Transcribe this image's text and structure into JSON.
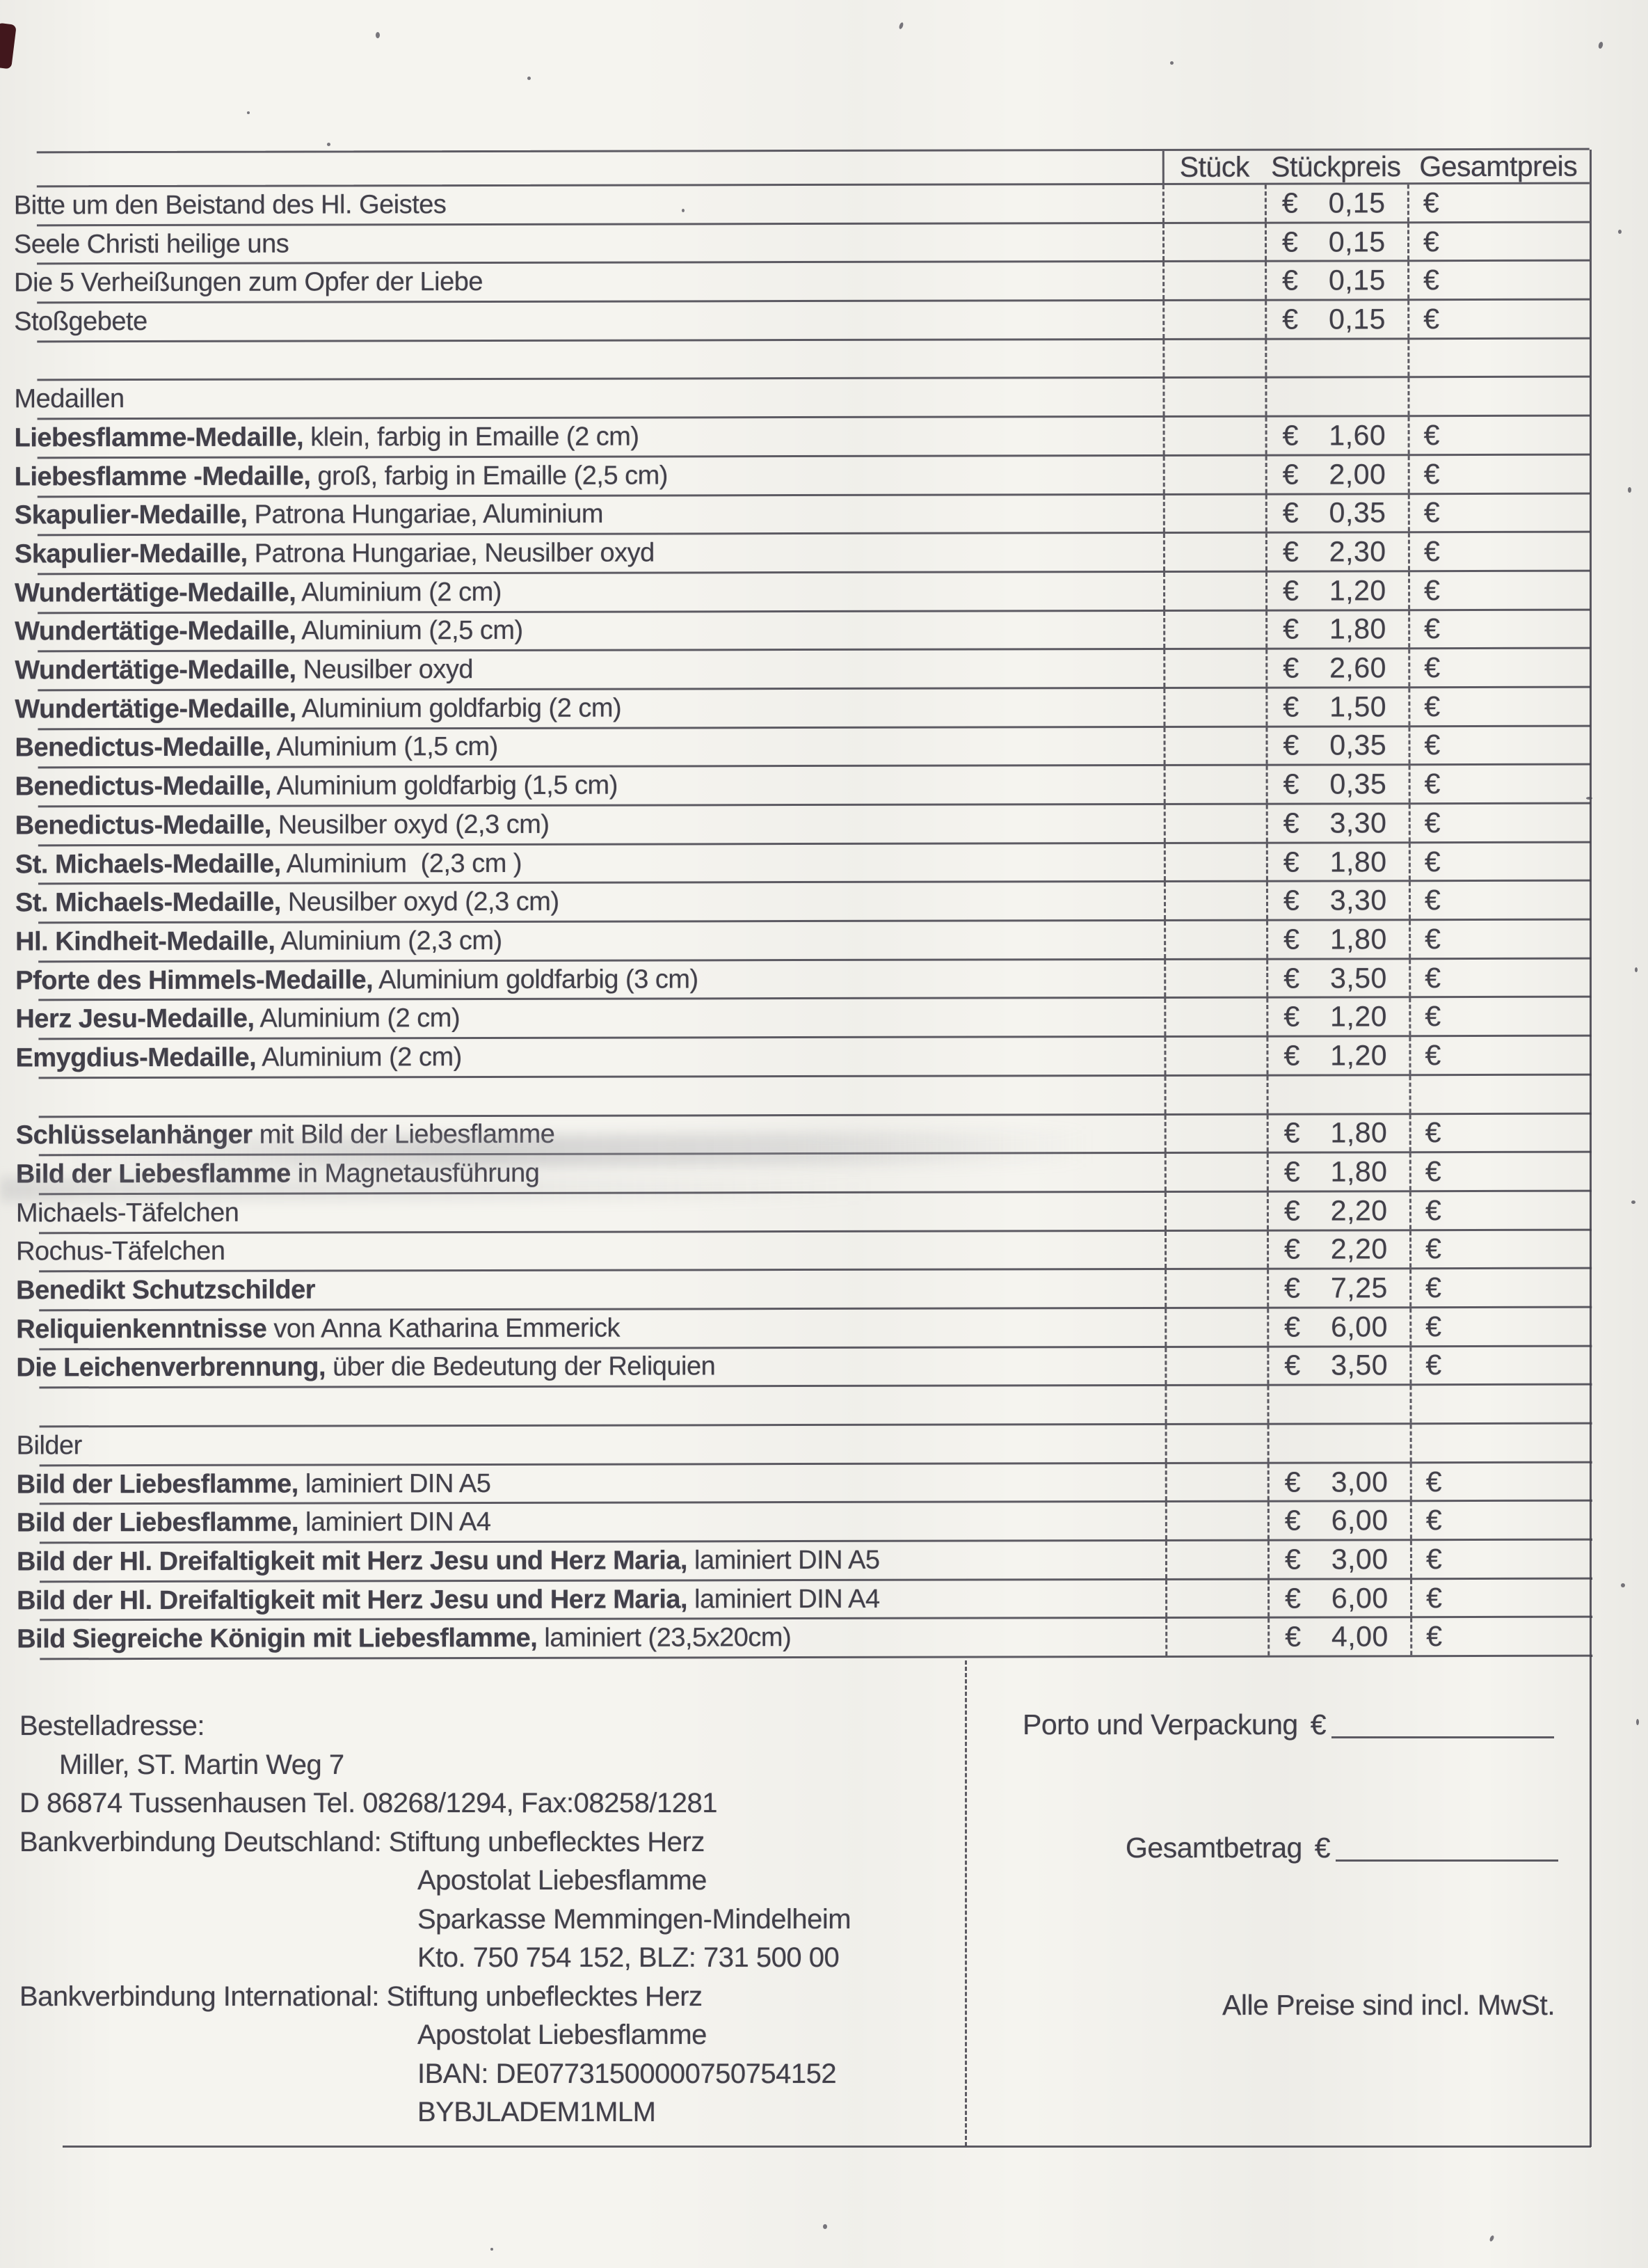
{
  "table": {
    "headers": {
      "stueck": "Stück",
      "stueckpreis": "Stückpreis",
      "gesamtpreis": "Gesamtpreis"
    },
    "currency": "€",
    "rows": [
      {
        "type": "item",
        "bold": "",
        "rest": "Bitte um den Beistand des Hl. Geistes",
        "price": "0,15"
      },
      {
        "type": "item",
        "bold": "",
        "rest": "Seele Christi heilige uns",
        "price": "0,15"
      },
      {
        "type": "item",
        "bold": "",
        "rest": "Die 5 Verheißungen zum Opfer der Liebe",
        "price": "0,15"
      },
      {
        "type": "item",
        "bold": "",
        "rest": "Stoßgebete",
        "price": "0,15"
      },
      {
        "type": "blank",
        "bold": "",
        "rest": "",
        "price": ""
      },
      {
        "type": "section",
        "bold": "",
        "rest": "Medaillen",
        "price": ""
      },
      {
        "type": "item",
        "bold": "Liebesflamme-Medaille,",
        "rest": " klein, farbig in Emaille (2 cm)",
        "price": "1,60"
      },
      {
        "type": "item",
        "bold": "Liebesflamme -Medaille,",
        "rest": " groß, farbig in Emaille (2,5 cm)",
        "price": "2,00"
      },
      {
        "type": "item",
        "bold": "Skapulier-Medaille,",
        "rest": " Patrona Hungariae, Aluminium",
        "price": "0,35"
      },
      {
        "type": "item",
        "bold": "Skapulier-Medaille,",
        "rest": " Patrona Hungariae, Neusilber oxyd",
        "price": "2,30"
      },
      {
        "type": "item",
        "bold": "Wundertätige-Medaille,",
        "rest": " Aluminium (2 cm)",
        "price": "1,20"
      },
      {
        "type": "item",
        "bold": "Wundertätige-Medaille,",
        "rest": " Aluminium (2,5 cm)",
        "price": "1,80"
      },
      {
        "type": "item",
        "bold": "Wundertätige-Medaille,",
        "rest": " Neusilber oxyd",
        "price": "2,60"
      },
      {
        "type": "item",
        "bold": "Wundertätige-Medaille,",
        "rest": " Aluminium goldfarbig (2 cm)",
        "price": "1,50"
      },
      {
        "type": "item",
        "bold": "Benedictus-Medaille,",
        "rest": " Aluminium (1,5 cm)",
        "price": "0,35"
      },
      {
        "type": "item",
        "bold": "Benedictus-Medaille,",
        "rest": " Aluminium goldfarbig (1,5 cm)",
        "price": "0,35"
      },
      {
        "type": "item",
        "bold": "Benedictus-Medaille,",
        "rest": " Neusilber oxyd (2,3 cm)",
        "price": "3,30"
      },
      {
        "type": "item",
        "bold": "St. Michaels-Medaille,",
        "rest": " Aluminium  (2,3 cm )",
        "price": "1,80"
      },
      {
        "type": "item",
        "bold": "St. Michaels-Medaille,",
        "rest": " Neusilber oxyd (2,3 cm)",
        "price": "3,30"
      },
      {
        "type": "item",
        "bold": "Hl. Kindheit-Medaille,",
        "rest": " Aluminium (2,3 cm)",
        "price": "1,80"
      },
      {
        "type": "item",
        "bold": "Pforte des Himmels-Medaille,",
        "rest": " Aluminium goldfarbig (3 cm)",
        "price": "3,50"
      },
      {
        "type": "item",
        "bold": "Herz Jesu-Medaille,",
        "rest": " Aluminium (2 cm)",
        "price": "1,20"
      },
      {
        "type": "item",
        "bold": "Emygdius-Medaille,",
        "rest": " Aluminium (2 cm)",
        "price": "1,20"
      },
      {
        "type": "blank",
        "bold": "",
        "rest": "",
        "price": ""
      },
      {
        "type": "item",
        "bold": "Schlüsselanhänger",
        "rest": " mit Bild der Liebesflamme",
        "price": "1,80"
      },
      {
        "type": "item",
        "bold": "Bild der Liebesflamme",
        "rest": " in Magnetausführung",
        "price": "1,80"
      },
      {
        "type": "item",
        "bold": "",
        "rest": "Michaels-Täfelchen",
        "price": "2,20"
      },
      {
        "type": "item",
        "bold": "",
        "rest": "Rochus-Täfelchen",
        "price": "2,20"
      },
      {
        "type": "item",
        "bold": "Benedikt Schutzschilder",
        "rest": "",
        "price": "7,25"
      },
      {
        "type": "item",
        "bold": "Reliquienkenntnisse",
        "rest": " von Anna Katharina Emmerick",
        "price": "6,00"
      },
      {
        "type": "item",
        "bold": "Die Leichenverbrennung,",
        "rest": " über die Bedeutung der Reliquien",
        "price": "3,50"
      },
      {
        "type": "blank",
        "bold": "",
        "rest": "",
        "price": ""
      },
      {
        "type": "section",
        "bold": "",
        "rest": "Bilder",
        "price": ""
      },
      {
        "type": "item",
        "bold": "Bild der Liebesflamme,",
        "rest": " laminiert DIN A5",
        "price": "3,00"
      },
      {
        "type": "item",
        "bold": "Bild der Liebesflamme,",
        "rest": " laminiert DIN A4",
        "price": "6,00"
      },
      {
        "type": "item",
        "bold": "Bild der Hl. Dreifaltigkeit mit Herz Jesu und Herz Maria,",
        "rest": " laminiert DIN A5",
        "price": "3,00"
      },
      {
        "type": "item",
        "bold": "Bild der Hl. Dreifaltigkeit mit Herz Jesu und Herz Maria,",
        "rest": " laminiert DIN A4",
        "price": "6,00"
      },
      {
        "type": "item",
        "bold": "Bild Siegreiche Königin mit Liebesflamme,",
        "rest": " laminiert (23,5x20cm)",
        "price": "4,00"
      }
    ]
  },
  "order_footer": {
    "porto_label": "Porto und Verpackung",
    "gesamtbetrag_label": "Gesamtbetrag",
    "mwst_note": "Alle Preise sind incl. MwSt.",
    "currency": "€"
  },
  "address": {
    "lines": [
      {
        "text": "Bestelladresse:",
        "indent": 0
      },
      {
        "text": "Miller, ST. Martin Weg 7",
        "indent": 1
      },
      {
        "text": "D 86874 Tussenhausen Tel. 08268/1294, Fax:08258/1281",
        "indent": 0
      },
      {
        "text": "Bankverbindung Deutschland: Stiftung unbeflecktes Herz",
        "indent": 0
      },
      {
        "text": "Apostolat Liebesflamme",
        "indent": 2
      },
      {
        "text": "Sparkasse Memmingen-Mindelheim",
        "indent": 2
      },
      {
        "text": "Kto. 750 754 152, BLZ: 731 500 00",
        "indent": 2
      },
      {
        "text": "Bankverbindung International: Stiftung unbeflecktes Herz",
        "indent": 0
      },
      {
        "text": "Apostolat Liebesflamme",
        "indent": 2
      },
      {
        "text": "IBAN: DE07731500000750754152",
        "indent": 2
      },
      {
        "text": "BYBJLADEM1MLM",
        "indent": 2
      }
    ]
  }
}
